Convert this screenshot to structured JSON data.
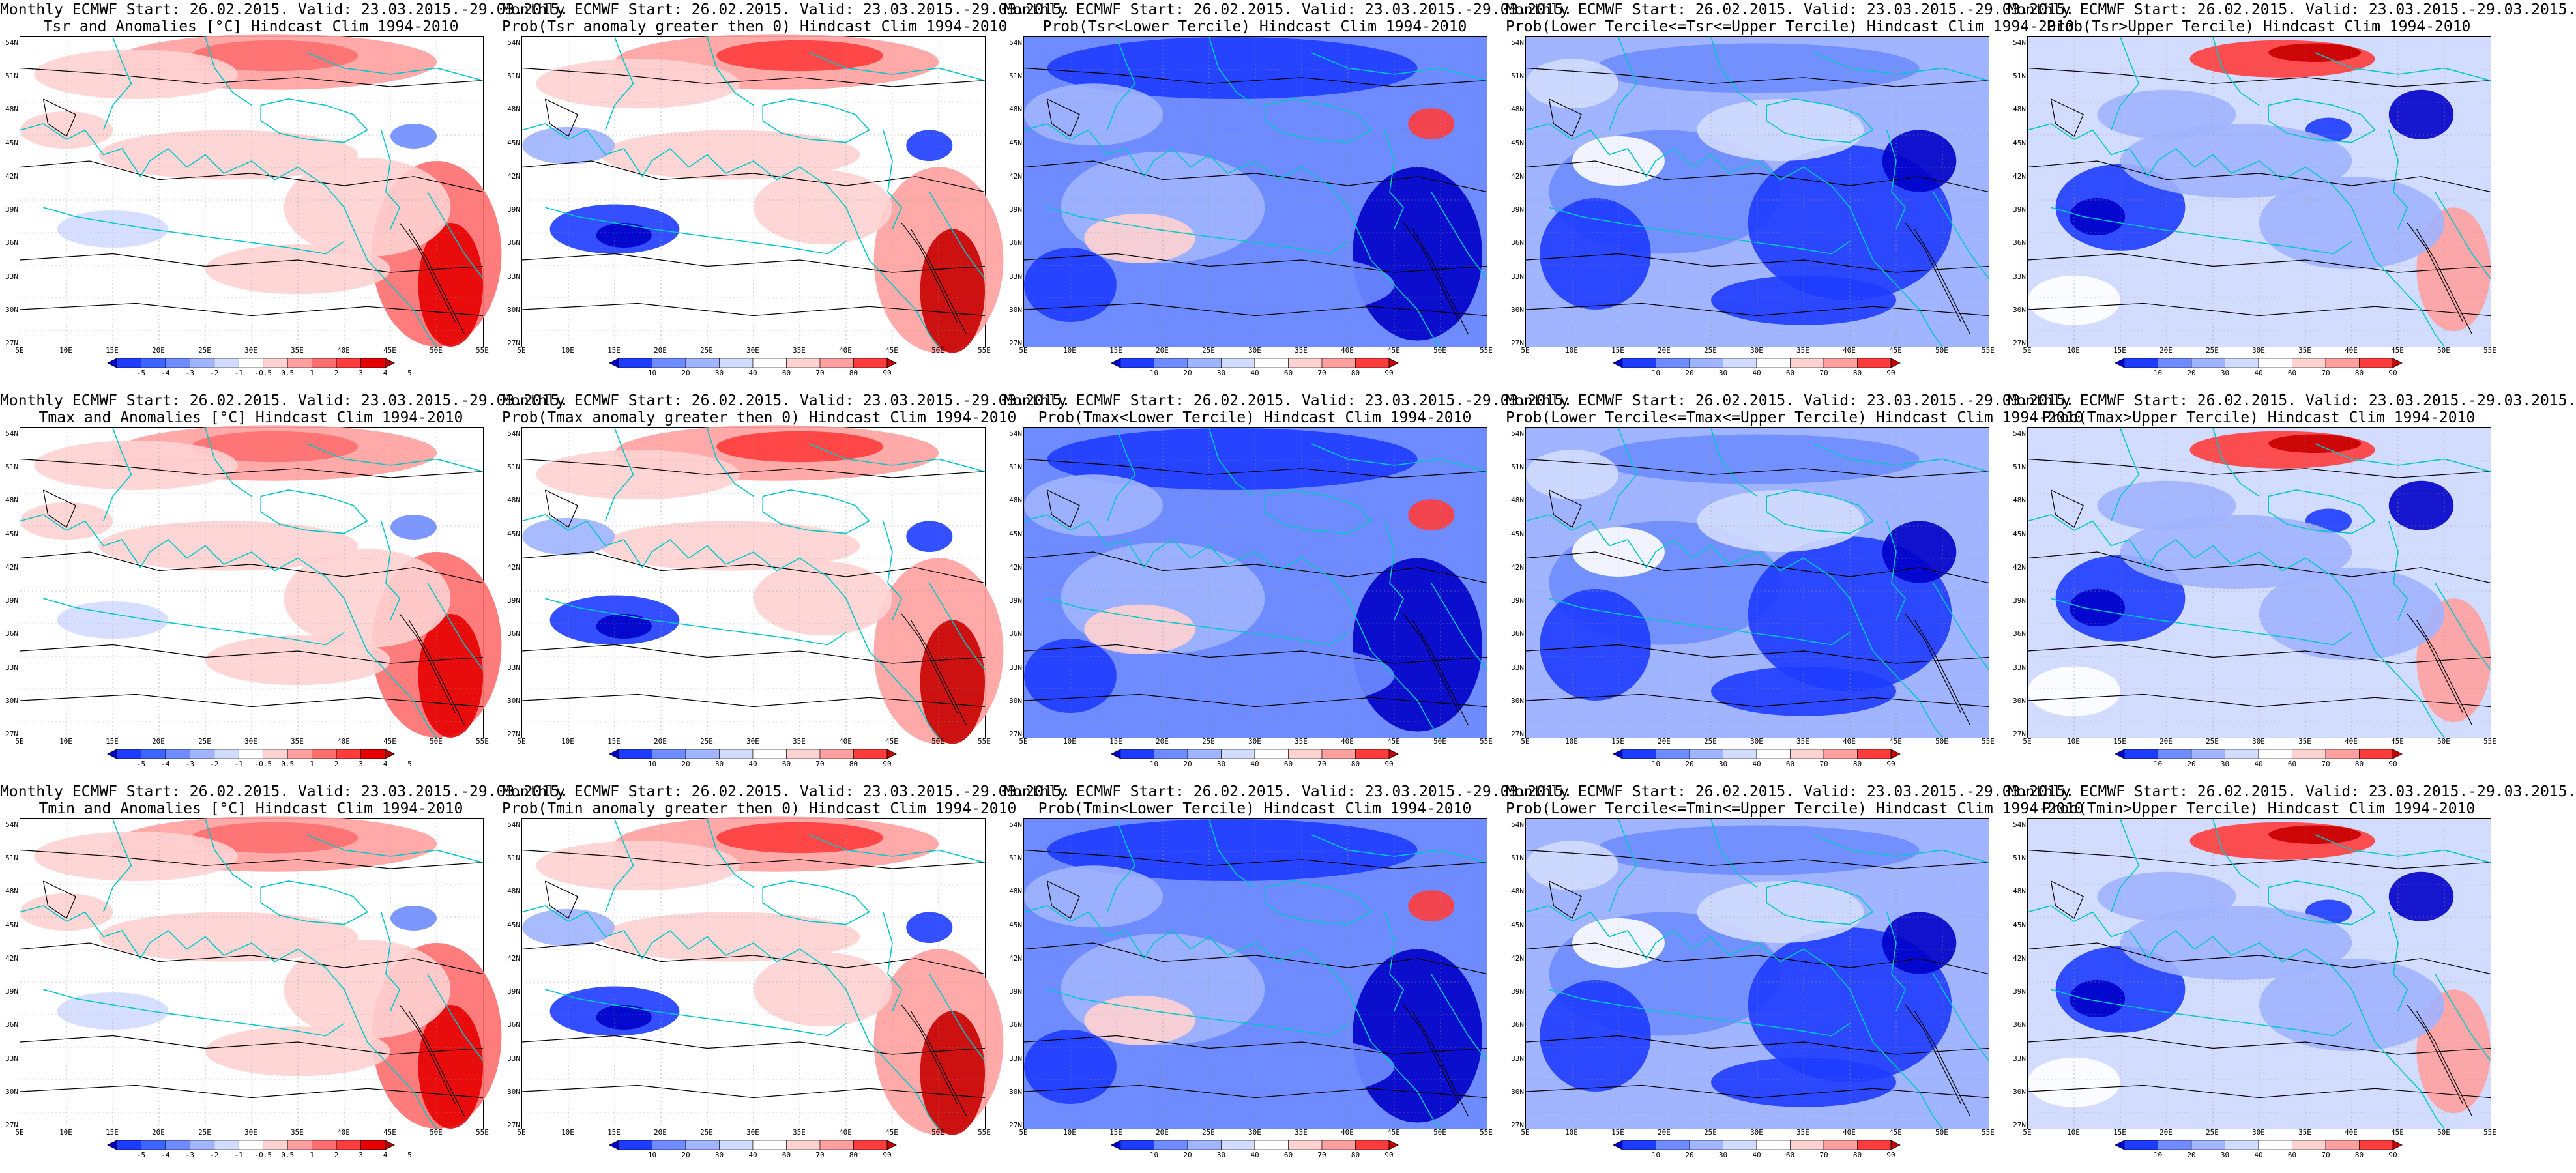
{
  "latitude_labels": [
    "54N",
    "51N",
    "48N",
    "45N",
    "42N",
    "39N",
    "36N",
    "33N",
    "30N",
    "27N"
  ],
  "longitude_labels": [
    "5E",
    "10E",
    "15E",
    "20E",
    "25E",
    "30E",
    "35E",
    "40E",
    "45E",
    "50E",
    "55E"
  ],
  "colorbars": {
    "anomaly": {
      "labels": [
        "-5",
        "-4",
        "-3",
        "-2",
        "-1",
        "-0.5",
        "0.5",
        "1",
        "2",
        "3",
        "4",
        "5"
      ],
      "colors": [
        "#0000c8",
        "#1e3cff",
        "#3c64ff",
        "#6e8cff",
        "#a0b4ff",
        "#d2dcff",
        "#ffffff",
        "#ffd2d2",
        "#ffa0a0",
        "#ff6e6e",
        "#ff3c3c",
        "#e60000",
        "#b40000"
      ]
    },
    "probability": {
      "labels": [
        "10",
        "20",
        "30",
        "40",
        "60",
        "70",
        "80",
        "90"
      ],
      "colors": [
        "#0000c8",
        "#1e3cff",
        "#6e8cff",
        "#a0b4ff",
        "#d2dcff",
        "#ffffff",
        "#ffd2d2",
        "#ffa0a0",
        "#ff3c3c",
        "#c80000"
      ]
    }
  },
  "panels": [
    {
      "title_line1": "Monthly ECMWF Start: 26.02.2015. Valid: 23.03.2015.-29.03.2015.",
      "title_line2": "Tsr and Anomalies [°C] Hindcast Clim 1994-2010",
      "colorbar": "anomaly",
      "pattern": "anomaly"
    },
    {
      "title_line1": "Monthly ECMWF Start: 26.02.2015. Valid: 23.03.2015.-29.03.2015.",
      "title_line2": "Prob(Tsr anomaly greater then 0) Hindcast Clim 1994-2010",
      "colorbar": "probability",
      "pattern": "prob_pos"
    },
    {
      "title_line1": "Monthly ECMWF Start: 26.02.2015. Valid: 23.03.2015.-29.03.2015.",
      "title_line2": "Prob(Tsr<Lower Tercile) Hindcast Clim 1994-2010",
      "colorbar": "probability",
      "pattern": "lower"
    },
    {
      "title_line1": "Monthly ECMWF Start: 26.02.2015. Valid: 23.03.2015.-29.03.2015.",
      "title_line2": "Prob(Lower Tercile<=Tsr<=Upper Tercile) Hindcast Clim 1994-2010",
      "colorbar": "probability",
      "pattern": "middle"
    },
    {
      "title_line1": "Monthly ECMWF Start: 26.02.2015. Valid: 23.03.2015.-29.03.2015.",
      "title_line2": "Prob(Tsr>Upper Tercile) Hindcast Clim 1994-2010",
      "colorbar": "probability",
      "pattern": "upper"
    },
    {
      "title_line1": "Monthly ECMWF Start: 26.02.2015. Valid: 23.03.2015.-29.03.2015.",
      "title_line2": "Tmax and Anomalies [°C] Hindcast Clim 1994-2010",
      "colorbar": "anomaly",
      "pattern": "anomaly"
    },
    {
      "title_line1": "Monthly ECMWF Start: 26.02.2015. Valid: 23.03.2015.-29.03.2015.",
      "title_line2": "Prob(Tmax anomaly greater then 0) Hindcast Clim 1994-2010",
      "colorbar": "probability",
      "pattern": "prob_pos"
    },
    {
      "title_line1": "Monthly ECMWF Start: 26.02.2015. Valid: 23.03.2015.-29.03.2015.",
      "title_line2": "Prob(Tmax<Lower Tercile) Hindcast Clim 1994-2010",
      "colorbar": "probability",
      "pattern": "lower"
    },
    {
      "title_line1": "Monthly ECMWF Start: 26.02.2015. Valid: 23.03.2015.-29.03.2015.",
      "title_line2": "Prob(Lower Tercile<=Tmax<=Upper Tercile) Hindcast Clim 1994-2010",
      "colorbar": "probability",
      "pattern": "middle"
    },
    {
      "title_line1": "Monthly ECMWF Start: 26.02.2015. Valid: 23.03.2015.-29.03.2015.",
      "title_line2": "Prob(Tmax>Upper Tercile) Hindcast Clim 1994-2010",
      "colorbar": "probability",
      "pattern": "upper"
    },
    {
      "title_line1": "Monthly ECMWF Start: 26.02.2015. Valid: 23.03.2015.-29.03.2015.",
      "title_line2": "Tmin and Anomalies [°C] Hindcast Clim 1994-2010",
      "colorbar": "anomaly",
      "pattern": "anomaly"
    },
    {
      "title_line1": "Monthly ECMWF Start: 26.02.2015. Valid: 23.03.2015.-29.03.2015.",
      "title_line2": "Prob(Tmin anomaly greater then 0) Hindcast Clim 1994-2010",
      "colorbar": "probability",
      "pattern": "prob_pos"
    },
    {
      "title_line1": "Monthly ECMWF Start: 26.02.2015. Valid: 23.03.2015.-29.03.2015.",
      "title_line2": "Prob(Tmin<Lower Tercile) Hindcast Clim 1994-2010",
      "colorbar": "probability",
      "pattern": "lower"
    },
    {
      "title_line1": "Monthly ECMWF Start: 26.02.2015. Valid: 23.03.2015.-29.03.2015.",
      "title_line2": "Prob(Lower Tercile<=Tmin<=Upper Tercile) Hindcast Clim 1994-2010",
      "colorbar": "probability",
      "pattern": "middle"
    },
    {
      "title_line1": "Monthly ECMWF Start: 26.02.2015. Valid: 23.03.2015.-29.03.2015.",
      "title_line2": "Prob(Tmin>Upper Tercile) Hindcast Clim 1994-2010",
      "colorbar": "probability",
      "pattern": "upper"
    }
  ],
  "map_colors": {
    "coastline": "#00c8c8",
    "contour": "#000000"
  }
}
